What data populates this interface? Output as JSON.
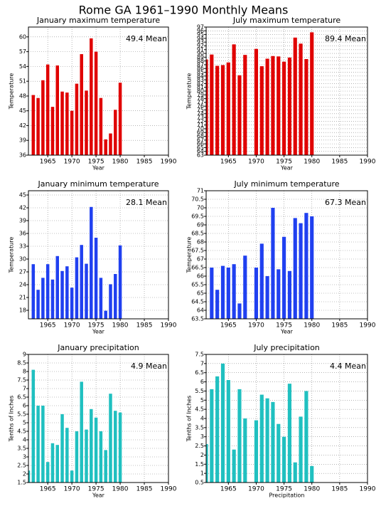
{
  "title": "Rome GA   1961–1990 Monthly Means",
  "chart_data": [
    {
      "type": "bar",
      "title": "January maximum temperature",
      "annotation": "49.4 Mean",
      "xlabel": "Year",
      "ylabel": "Temperature",
      "color": "#e00000",
      "grid": true,
      "x": [
        1961,
        1962,
        1963,
        1964,
        1965,
        1966,
        1967,
        1968,
        1969,
        1970,
        1971,
        1972,
        1973,
        1974,
        1975,
        1976,
        1977,
        1978,
        1979,
        1980
      ],
      "values": [
        null,
        48.2,
        47.6,
        51.2,
        54.4,
        45.8,
        54.2,
        48.9,
        48.7,
        45.0,
        50.5,
        56.5,
        49.1,
        59.7,
        57.0,
        47.6,
        39.2,
        40.4,
        45.2,
        50.7
      ],
      "xlim": [
        1961,
        1990
      ],
      "xticks": [
        1965,
        1970,
        1975,
        1980,
        1985,
        1990
      ],
      "ylim": [
        36,
        62
      ],
      "yticks": [
        36,
        39,
        42,
        45,
        48,
        51,
        54,
        57,
        60
      ]
    },
    {
      "type": "bar",
      "title": "July maximum temperature",
      "annotation": "89.4 Mean",
      "xlabel": "Year",
      "ylabel": "Temperature",
      "color": "#e00000",
      "grid": true,
      "x": [
        1961,
        1962,
        1963,
        1964,
        1965,
        1966,
        1967,
        1968,
        1969,
        1970,
        1971,
        1972,
        1973,
        1974,
        1975,
        1976,
        1977,
        1978,
        1979,
        1980
      ],
      "values": [
        88.4,
        89.7,
        86.7,
        86.9,
        87.6,
        92.4,
        84.2,
        89.6,
        null,
        91.2,
        86.6,
        88.6,
        89.3,
        89.2,
        87.8,
        88.9,
        94.2,
        92.6,
        88.5,
        95.6
      ],
      "xlim": [
        1961,
        1990
      ],
      "xticks": [
        1965,
        1970,
        1975,
        1980,
        1985,
        1990
      ],
      "ylim": [
        63,
        97
      ],
      "yticks": [
        63,
        64,
        65,
        66,
        67,
        68,
        69,
        70,
        71,
        72,
        73,
        74,
        75,
        76,
        77,
        78,
        79,
        80,
        81,
        82,
        83,
        84,
        85,
        86,
        87,
        88,
        89,
        90,
        91,
        92,
        93,
        94,
        95,
        96,
        97
      ]
    },
    {
      "type": "bar",
      "title": "January minimum temperature",
      "annotation": "28.1 Mean",
      "xlabel": "Year",
      "ylabel": "Temperature",
      "color": "#2040f0",
      "grid": true,
      "x": [
        1961,
        1962,
        1963,
        1964,
        1965,
        1966,
        1967,
        1968,
        1969,
        1970,
        1971,
        1972,
        1973,
        1974,
        1975,
        1976,
        1977,
        1978,
        1979,
        1980
      ],
      "values": [
        null,
        28.8,
        22.8,
        25.6,
        28.8,
        25.2,
        30.7,
        27.2,
        28.3,
        23.3,
        30.4,
        33.3,
        28.9,
        42.2,
        35.0,
        25.6,
        17.9,
        24.1,
        26.5,
        33.2
      ],
      "xlim": [
        1961,
        1990
      ],
      "xticks": [
        1965,
        1970,
        1975,
        1980,
        1985,
        1990
      ],
      "ylim": [
        16,
        46
      ],
      "yticks": [
        18,
        21,
        24,
        27,
        30,
        33,
        36,
        39,
        42,
        45
      ]
    },
    {
      "type": "bar",
      "title": "July minimum temperature",
      "annotation": "67.3 Mean",
      "xlabel": "Year",
      "ylabel": "Temperature",
      "color": "#2040f0",
      "grid": true,
      "x": [
        1961,
        1962,
        1963,
        1964,
        1965,
        1966,
        1967,
        1968,
        1969,
        1970,
        1971,
        1972,
        1973,
        1974,
        1975,
        1976,
        1977,
        1978,
        1979,
        1980
      ],
      "values": [
        null,
        66.5,
        65.2,
        66.6,
        66.5,
        66.7,
        64.4,
        67.2,
        null,
        66.5,
        67.9,
        66.0,
        70.0,
        66.4,
        68.3,
        66.3,
        69.4,
        69.1,
        69.7,
        69.5
      ],
      "xlim": [
        1961,
        1990
      ],
      "xticks": [
        1965,
        1970,
        1975,
        1980,
        1985,
        1990
      ],
      "ylim": [
        63.5,
        71
      ],
      "yticks": [
        63.5,
        64,
        64.5,
        65,
        65.5,
        66,
        66.5,
        67,
        67.5,
        68,
        68.5,
        69,
        69.5,
        70,
        70.5,
        71
      ]
    },
    {
      "type": "bar",
      "title": "January precipitation",
      "annotation": "4.9 Mean",
      "xlabel": "Year",
      "ylabel": "Tenths of Inches",
      "color": "#20c0c0",
      "grid": true,
      "x": [
        1961,
        1962,
        1963,
        1964,
        1965,
        1966,
        1967,
        1968,
        1969,
        1970,
        1971,
        1972,
        1973,
        1974,
        1975,
        1976,
        1977,
        1978,
        1979,
        1980
      ],
      "values": [
        2.2,
        8.1,
        6.0,
        6.0,
        2.7,
        3.8,
        3.7,
        5.5,
        4.7,
        2.2,
        4.5,
        7.4,
        4.6,
        5.8,
        5.3,
        4.5,
        3.4,
        6.7,
        5.7,
        5.6
      ],
      "xlim": [
        1961,
        1990
      ],
      "xticks": [
        1965,
        1970,
        1975,
        1980,
        1985,
        1990
      ],
      "ylim": [
        1.5,
        9
      ],
      "yticks": [
        1.5,
        2,
        2.5,
        3,
        3.5,
        4,
        4.5,
        5,
        5.5,
        6,
        6.5,
        7,
        7.5,
        8,
        8.5,
        9
      ]
    },
    {
      "type": "bar",
      "title": "July precipitation",
      "annotation": "4.4 Mean",
      "xlabel": "Precipitation",
      "ylabel": "Tenths of Inches",
      "color": "#20c0c0",
      "grid": true,
      "x": [
        1961,
        1962,
        1963,
        1964,
        1965,
        1966,
        1967,
        1968,
        1969,
        1970,
        1971,
        1972,
        1973,
        1974,
        1975,
        1976,
        1977,
        1978,
        1979,
        1980
      ],
      "values": [
        2.6,
        5.6,
        6.3,
        7.0,
        6.1,
        2.3,
        5.6,
        4.0,
        null,
        3.9,
        5.3,
        5.1,
        4.9,
        3.7,
        3.0,
        5.9,
        1.6,
        4.1,
        5.5,
        1.4
      ],
      "xlim": [
        1961,
        1990
      ],
      "xticks": [
        1965,
        1970,
        1975,
        1980,
        1985,
        1990
      ],
      "ylim": [
        0.5,
        7.5
      ],
      "yticks": [
        0.5,
        1,
        1.5,
        2,
        2.5,
        3,
        3.5,
        4,
        4.5,
        5,
        5.5,
        6,
        6.5,
        7,
        7.5
      ]
    }
  ]
}
